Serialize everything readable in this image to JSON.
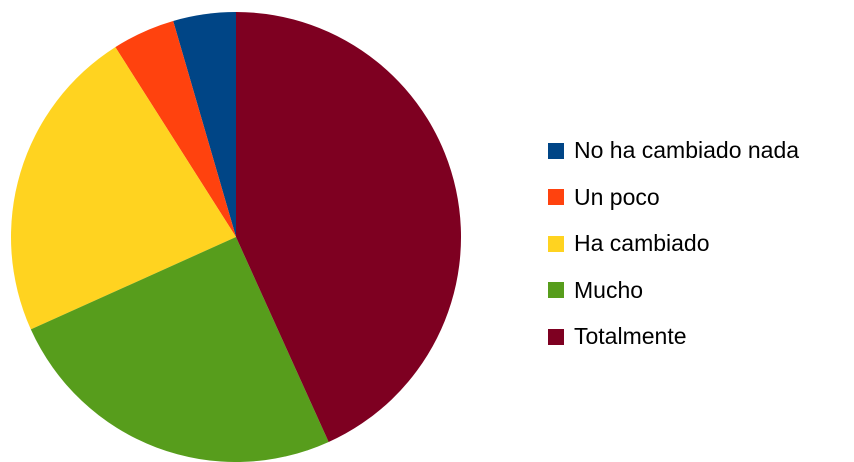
{
  "chart_data": {
    "type": "pie",
    "legend_position": "right",
    "slices": [
      {
        "label": "No ha cambiado nada",
        "value": 4.5,
        "color": "#004586"
      },
      {
        "label": "Un poco",
        "value": 4.5,
        "color": "#ff420e"
      },
      {
        "label": "Ha cambiado",
        "value": 22.7,
        "color": "#ffd320"
      },
      {
        "label": "Mucho",
        "value": 25.0,
        "color": "#579d1c"
      },
      {
        "label": "Totalmente",
        "value": 43.2,
        "color": "#7e0021"
      }
    ]
  }
}
